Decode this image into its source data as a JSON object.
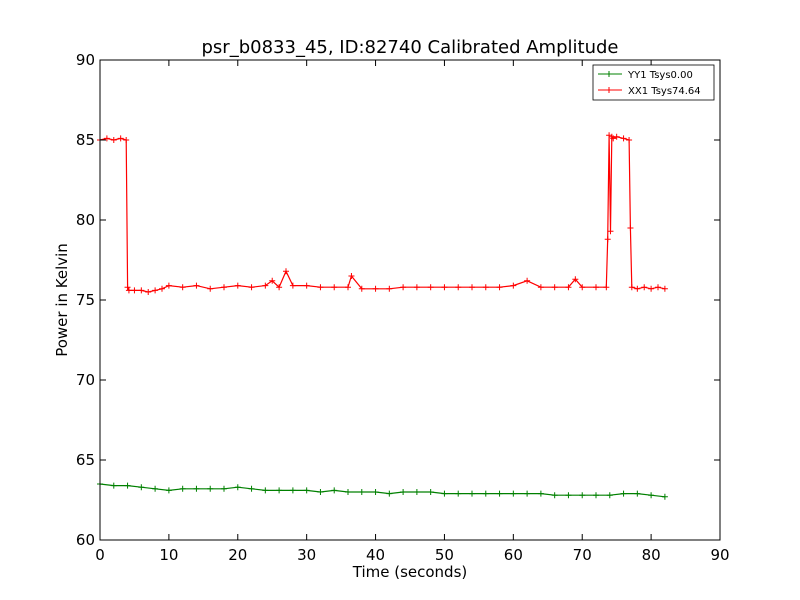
{
  "chart_data": {
    "type": "line",
    "title": "psr_b0833_45, ID:82740 Calibrated Amplitude",
    "xlabel": "Time (seconds)",
    "ylabel": "Power in Kelvin",
    "xlim": [
      0,
      90
    ],
    "ylim": [
      60,
      90
    ],
    "xticks": [
      0,
      10,
      20,
      30,
      40,
      50,
      60,
      70,
      80,
      90
    ],
    "yticks": [
      60,
      65,
      70,
      75,
      80,
      85,
      90
    ],
    "grid": false,
    "legend_position": "top-right",
    "series": [
      {
        "name": "YY1 Tsys0.00",
        "color": "#008000",
        "marker": "+",
        "x": [
          0,
          2,
          4,
          6,
          8,
          10,
          12,
          14,
          16,
          18,
          20,
          22,
          24,
          26,
          28,
          30,
          32,
          34,
          36,
          38,
          40,
          42,
          44,
          46,
          48,
          50,
          52,
          54,
          56,
          58,
          60,
          62,
          64,
          66,
          68,
          70,
          72,
          74,
          76,
          78,
          80,
          82
        ],
        "y": [
          63.5,
          63.4,
          63.4,
          63.3,
          63.2,
          63.1,
          63.2,
          63.2,
          63.2,
          63.2,
          63.3,
          63.2,
          63.1,
          63.1,
          63.1,
          63.1,
          63.0,
          63.1,
          63.0,
          63.0,
          63.0,
          62.9,
          63.0,
          63.0,
          63.0,
          62.9,
          62.9,
          62.9,
          62.9,
          62.9,
          62.9,
          62.9,
          62.9,
          62.8,
          62.8,
          62.8,
          62.8,
          62.8,
          62.9,
          62.9,
          62.8,
          62.7
        ]
      },
      {
        "name": "XX1 Tsys74.64",
        "color": "#ff0000",
        "marker": "+",
        "x": [
          0,
          1,
          2,
          3,
          3.8,
          4.0,
          4.2,
          5,
          6,
          7,
          8,
          9,
          10,
          12,
          14,
          16,
          18,
          20,
          22,
          24,
          25,
          26,
          27,
          28,
          30,
          32,
          34,
          36,
          36.5,
          38,
          40,
          42,
          44,
          46,
          48,
          50,
          52,
          54,
          56,
          58,
          60,
          62,
          64,
          66,
          68,
          69,
          70,
          72,
          73.5,
          73.7,
          73.9,
          74.1,
          74.3,
          74.5,
          75,
          76,
          76.8,
          77.0,
          77.2,
          78,
          79,
          80,
          81,
          82
        ],
        "y": [
          85.0,
          85.1,
          85.0,
          85.1,
          85.0,
          75.8,
          75.6,
          75.6,
          75.6,
          75.5,
          75.6,
          75.7,
          75.9,
          75.8,
          75.9,
          75.7,
          75.8,
          75.9,
          75.8,
          75.9,
          76.2,
          75.8,
          76.8,
          75.9,
          75.9,
          75.8,
          75.8,
          75.8,
          76.5,
          75.7,
          75.7,
          75.7,
          75.8,
          75.8,
          75.8,
          75.8,
          75.8,
          75.8,
          75.8,
          75.8,
          75.9,
          76.2,
          75.8,
          75.8,
          75.8,
          76.3,
          75.8,
          75.8,
          75.8,
          78.8,
          85.3,
          79.3,
          85.2,
          85.1,
          85.2,
          85.1,
          85.0,
          79.5,
          75.8,
          75.7,
          75.8,
          75.7,
          75.8,
          75.7
        ]
      }
    ]
  }
}
